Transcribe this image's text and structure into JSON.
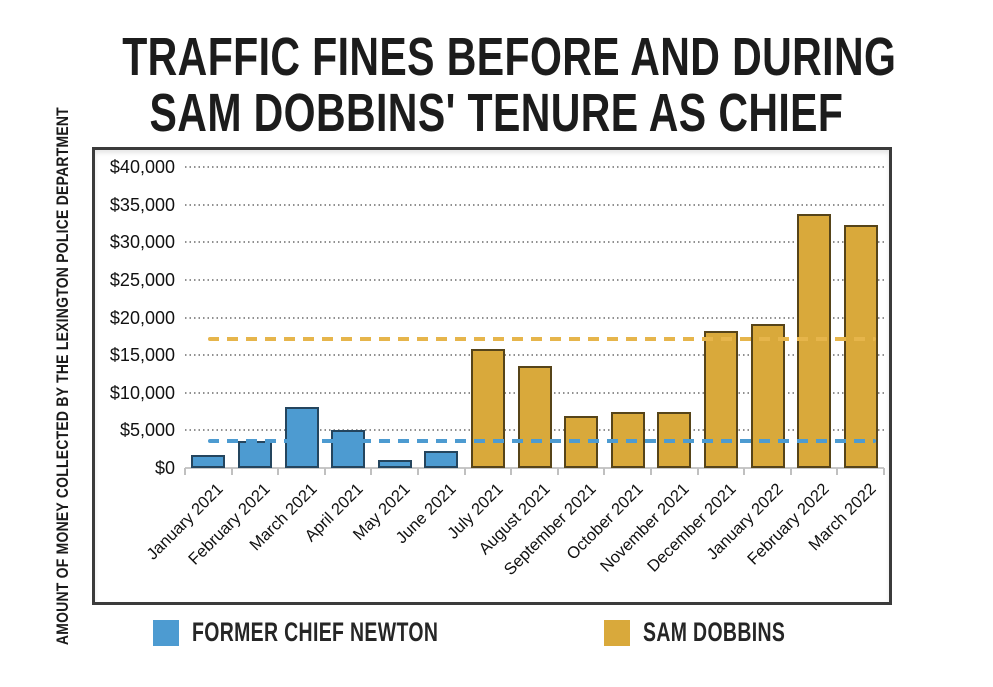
{
  "title": {
    "line1": "TRAFFIC FINES BEFORE AND DURING",
    "line2": "SAM DOBBINS' TENURE AS CHIEF"
  },
  "chart_data": {
    "type": "bar",
    "title": "TRAFFIC FINES BEFORE AND DURING SAM DOBBINS' TENURE AS CHIEF",
    "ylabel": "AMOUNT OF MONEY COLLECTED BY THE LEXINGTON POLICE DEPARTMENT",
    "xlabel": "",
    "categories": [
      "January 2021",
      "February 2021",
      "March 2021",
      "April 2021",
      "May 2021",
      "June 2021",
      "July 2021",
      "August 2021",
      "September 2021",
      "October 2021",
      "November 2021",
      "December 2021",
      "January 2022",
      "February 2022",
      "March 2022"
    ],
    "series": [
      {
        "name": "FORMER CHIEF NEWTON",
        "color": "#4d9bd1",
        "border_color": "#24455e",
        "values": [
          1700,
          3600,
          8100,
          5100,
          1100,
          2300,
          null,
          null,
          null,
          null,
          null,
          null,
          null,
          null,
          null
        ]
      },
      {
        "name": "SAM DOBBINS",
        "color": "#d9a93b",
        "border_color": "#564419",
        "values": [
          null,
          null,
          null,
          null,
          null,
          null,
          15800,
          13600,
          6900,
          7500,
          7500,
          18200,
          19100,
          33700,
          32300
        ]
      }
    ],
    "average_lines": [
      {
        "name": "newton-average",
        "value": 3650,
        "color": "#4d9bd1"
      },
      {
        "name": "dobbins-average",
        "value": 17200,
        "color": "#e6b54b"
      }
    ],
    "ylim": [
      0,
      40000
    ],
    "ytick_step": 5000,
    "ytick_labels": [
      "$0",
      "$5,000",
      "$10,000",
      "$15,000",
      "$20,000",
      "$25,000",
      "$30,000",
      "$35,000",
      "$40,000"
    ],
    "grid": "horizontal dotted",
    "legend_position": "bottom"
  },
  "colors": {
    "frame_border": "#3b3b3b",
    "gridline": "#909090",
    "axis_baseline": "#c7c7c7",
    "title_text": "#1c1c1c"
  }
}
